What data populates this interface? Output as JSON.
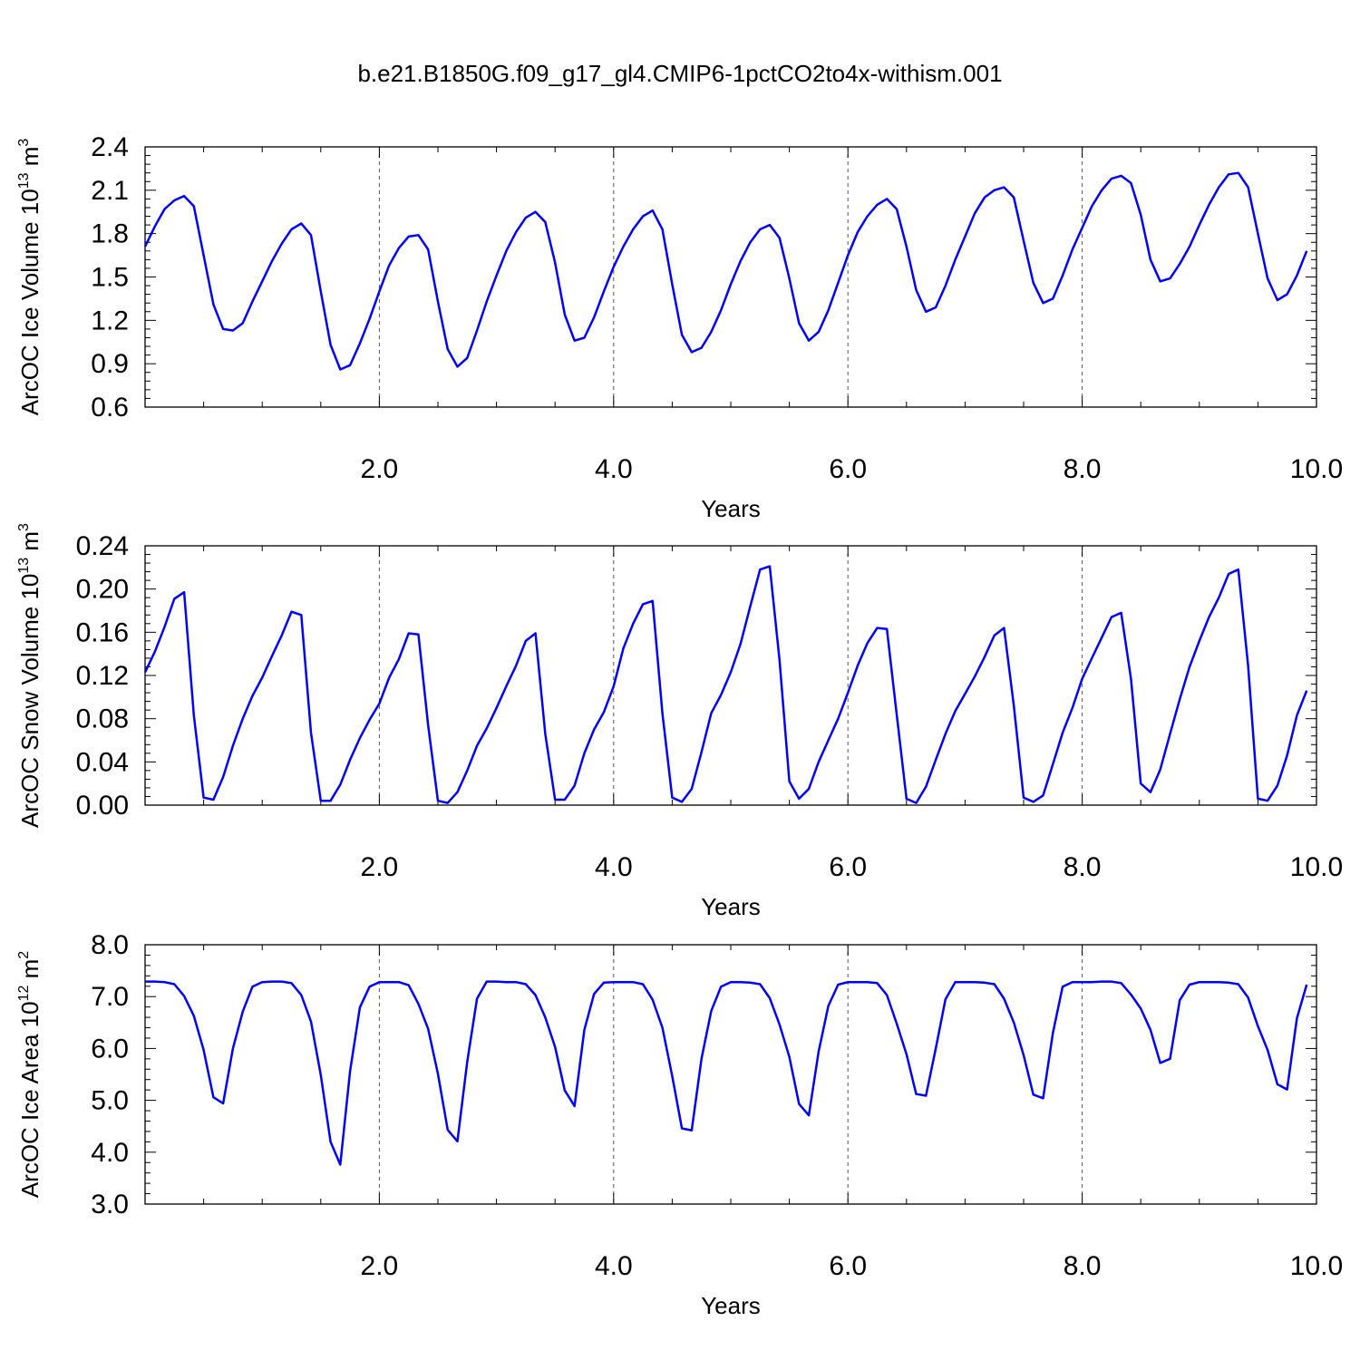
{
  "title": "b.e21.B1850G.f09_g17_gl4.CMIP6-1pctCO2to4x-withism.001",
  "colors": {
    "line": "#0000ff",
    "axis": "#000000",
    "grid": "#555555"
  },
  "chart_data": [
    {
      "type": "line",
      "ylabel": "ArcOC Ice Volume 10",
      "ylabel_sup": "13",
      "ylabel_unit": " m",
      "ylabel_unit_sup": "3",
      "xlabel": "Years",
      "xlim": [
        0.0,
        10.0
      ],
      "ylim": [
        0.6,
        2.4
      ],
      "xticks": [
        "2.0",
        "4.0",
        "6.0",
        "8.0",
        "10.0"
      ],
      "yticks": [
        "0.6",
        "0.9",
        "1.2",
        "1.5",
        "1.8",
        "2.1",
        "2.4"
      ],
      "ytick_values": [
        0.6,
        0.9,
        1.2,
        1.5,
        1.8,
        2.1,
        2.4
      ],
      "grid": "dashed vertical lines at 2, 4, 6, 8",
      "series": [
        {
          "x_start": 0.0,
          "x_step": 0.08333,
          "values": [
            1.71,
            1.85,
            1.97,
            2.03,
            2.06,
            1.99,
            1.65,
            1.31,
            1.14,
            1.13,
            1.18,
            1.33,
            1.47,
            1.61,
            1.73,
            1.83,
            1.87,
            1.79,
            1.4,
            1.03,
            0.86,
            0.89,
            1.04,
            1.21,
            1.4,
            1.58,
            1.7,
            1.78,
            1.79,
            1.69,
            1.33,
            1.0,
            0.88,
            0.94,
            1.13,
            1.33,
            1.51,
            1.68,
            1.81,
            1.91,
            1.95,
            1.88,
            1.6,
            1.24,
            1.06,
            1.08,
            1.22,
            1.4,
            1.57,
            1.71,
            1.83,
            1.92,
            1.96,
            1.83,
            1.45,
            1.1,
            0.98,
            1.01,
            1.12,
            1.27,
            1.45,
            1.61,
            1.74,
            1.83,
            1.86,
            1.77,
            1.49,
            1.18,
            1.06,
            1.12,
            1.27,
            1.46,
            1.65,
            1.81,
            1.92,
            2.0,
            2.04,
            1.97,
            1.71,
            1.41,
            1.26,
            1.29,
            1.44,
            1.62,
            1.78,
            1.94,
            2.05,
            2.1,
            2.12,
            2.05,
            1.75,
            1.46,
            1.32,
            1.35,
            1.51,
            1.69,
            1.84,
            1.99,
            2.1,
            2.18,
            2.2,
            2.15,
            1.93,
            1.62,
            1.47,
            1.49,
            1.59,
            1.71,
            1.86,
            2.0,
            2.12,
            2.21,
            2.22,
            2.12,
            1.8,
            1.49,
            1.34,
            1.38,
            1.51,
            1.68
          ]
        }
      ]
    },
    {
      "type": "line",
      "ylabel": "ArcOC Snow Volume 10",
      "ylabel_sup": "13",
      "ylabel_unit": " m",
      "ylabel_unit_sup": "3",
      "xlabel": "Years",
      "xlim": [
        0.0,
        10.0
      ],
      "ylim": [
        0.0,
        0.24
      ],
      "xticks": [
        "2.0",
        "4.0",
        "6.0",
        "8.0",
        "10.0"
      ],
      "yticks": [
        "0.00",
        "0.04",
        "0.08",
        "0.12",
        "0.16",
        "0.20",
        "0.24"
      ],
      "ytick_values": [
        0.0,
        0.04,
        0.08,
        0.12,
        0.16,
        0.2,
        0.24
      ],
      "grid": "dashed vertical lines at 2, 4, 6, 8",
      "series": [
        {
          "x_start": 0.0,
          "x_step": 0.08333,
          "values": [
            0.123,
            0.142,
            0.165,
            0.191,
            0.197,
            0.083,
            0.007,
            0.005,
            0.026,
            0.055,
            0.08,
            0.101,
            0.118,
            0.138,
            0.157,
            0.179,
            0.176,
            0.067,
            0.004,
            0.004,
            0.019,
            0.042,
            0.062,
            0.079,
            0.094,
            0.118,
            0.135,
            0.159,
            0.158,
            0.074,
            0.004,
            0.002,
            0.012,
            0.032,
            0.055,
            0.071,
            0.09,
            0.11,
            0.129,
            0.152,
            0.159,
            0.066,
            0.005,
            0.005,
            0.018,
            0.048,
            0.07,
            0.086,
            0.11,
            0.145,
            0.168,
            0.186,
            0.189,
            0.085,
            0.007,
            0.003,
            0.015,
            0.049,
            0.085,
            0.102,
            0.123,
            0.149,
            0.184,
            0.218,
            0.221,
            0.134,
            0.022,
            0.006,
            0.015,
            0.04,
            0.06,
            0.08,
            0.104,
            0.129,
            0.15,
            0.164,
            0.163,
            0.084,
            0.006,
            0.002,
            0.017,
            0.042,
            0.066,
            0.087,
            0.103,
            0.119,
            0.137,
            0.157,
            0.164,
            0.092,
            0.007,
            0.003,
            0.009,
            0.038,
            0.067,
            0.09,
            0.117,
            0.136,
            0.155,
            0.174,
            0.178,
            0.117,
            0.02,
            0.012,
            0.033,
            0.066,
            0.098,
            0.128,
            0.152,
            0.174,
            0.192,
            0.214,
            0.218,
            0.129,
            0.006,
            0.004,
            0.018,
            0.046,
            0.083,
            0.106
          ]
        }
      ]
    },
    {
      "type": "line",
      "ylabel": "ArcOC Ice Area 10",
      "ylabel_sup": "12",
      "ylabel_unit": " m",
      "ylabel_unit_sup": "2",
      "xlabel": "Years",
      "xlim": [
        0.0,
        10.0
      ],
      "ylim": [
        3.0,
        8.0
      ],
      "xticks": [
        "2.0",
        "4.0",
        "6.0",
        "8.0",
        "10.0"
      ],
      "yticks": [
        "3.0",
        "4.0",
        "5.0",
        "6.0",
        "7.0",
        "8.0"
      ],
      "ytick_values": [
        3.0,
        4.0,
        5.0,
        6.0,
        7.0,
        8.0
      ],
      "grid": "dashed vertical lines at 2, 4, 6, 8",
      "series": [
        {
          "x_start": 0.0,
          "x_step": 0.08333,
          "values": [
            7.29,
            7.29,
            7.28,
            7.24,
            7.01,
            6.63,
            5.97,
            5.06,
            4.94,
            6.0,
            6.71,
            7.19,
            7.28,
            7.29,
            7.29,
            7.26,
            7.03,
            6.52,
            5.49,
            4.2,
            3.76,
            5.56,
            6.79,
            7.19,
            7.28,
            7.28,
            7.28,
            7.22,
            6.86,
            6.38,
            5.51,
            4.43,
            4.21,
            5.74,
            6.96,
            7.29,
            7.29,
            7.28,
            7.28,
            7.24,
            7.03,
            6.6,
            6.03,
            5.19,
            4.89,
            6.36,
            7.05,
            7.27,
            7.28,
            7.28,
            7.28,
            7.24,
            6.94,
            6.4,
            5.47,
            4.46,
            4.42,
            5.8,
            6.72,
            7.19,
            7.28,
            7.28,
            7.27,
            7.24,
            6.97,
            6.46,
            5.84,
            4.93,
            4.71,
            5.94,
            6.82,
            7.23,
            7.28,
            7.28,
            7.28,
            7.26,
            7.03,
            6.48,
            5.89,
            5.12,
            5.09,
            6.0,
            6.95,
            7.28,
            7.28,
            7.28,
            7.27,
            7.24,
            6.96,
            6.5,
            5.87,
            5.11,
            5.04,
            6.3,
            7.19,
            7.28,
            7.28,
            7.28,
            7.29,
            7.29,
            7.26,
            7.04,
            6.77,
            6.36,
            5.72,
            5.8,
            6.93,
            7.23,
            7.28,
            7.28,
            7.28,
            7.27,
            7.24,
            6.98,
            6.43,
            5.97,
            5.31,
            5.21,
            6.58,
            7.23
          ]
        }
      ]
    }
  ]
}
